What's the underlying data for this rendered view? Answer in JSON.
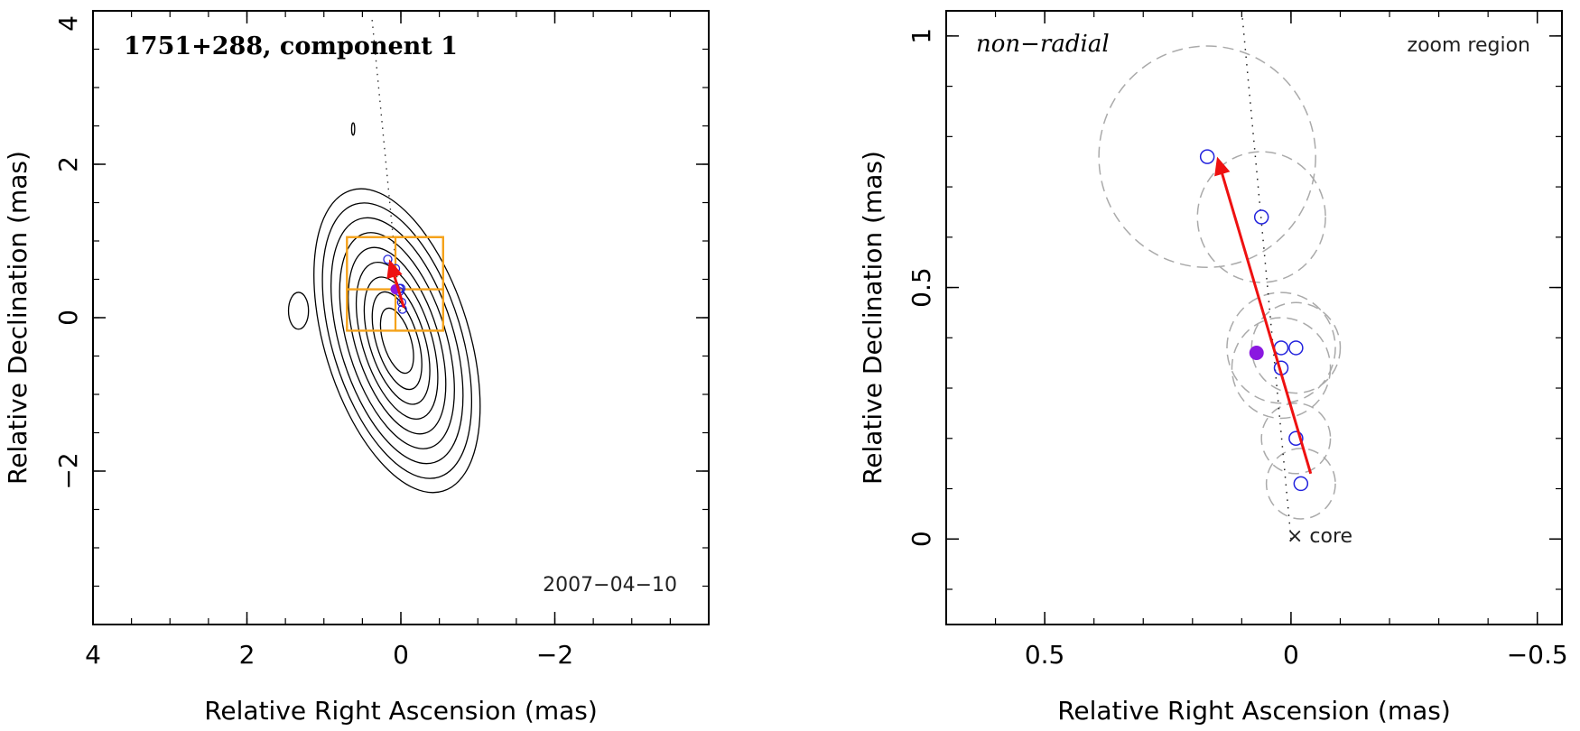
{
  "colors": {
    "contour": "#000000",
    "box": "#f5a21a",
    "circle": "#2222dd",
    "arrow": "#ee1111",
    "centroid": "#8a18e0",
    "error_circle": "#aaaaaa"
  },
  "chart_data": [
    {
      "id": "left",
      "type": "contour",
      "title": "1751+288, component 1",
      "date_label": "2007−04−10",
      "xlabel": "Relative Right Ascension (mas)",
      "ylabel": "Relative Declination (mas)",
      "xlim": [
        4,
        -4
      ],
      "ylim": [
        -4,
        4
      ],
      "xticks": [
        {
          "v": 4,
          "t": "4"
        },
        {
          "v": 2,
          "t": "2"
        },
        {
          "v": 0,
          "t": "0"
        },
        {
          "v": -2,
          "t": "−2"
        }
      ],
      "yticks": [
        {
          "v": 2,
          "t": "2"
        },
        {
          "v": 0,
          "t": "0"
        },
        {
          "v": -2,
          "t": "−2"
        }
      ],
      "ytop_label": {
        "v": 4,
        "t": "4"
      },
      "contours": {
        "center": [
          0.05,
          -0.3
        ],
        "pa_deg": -17,
        "levels": [
          {
            "a": 2.05,
            "b": 0.94
          },
          {
            "a": 1.86,
            "b": 0.84
          },
          {
            "a": 1.66,
            "b": 0.74
          },
          {
            "a": 1.46,
            "b": 0.64
          },
          {
            "a": 1.26,
            "b": 0.54
          },
          {
            "a": 1.06,
            "b": 0.45
          },
          {
            "a": 0.86,
            "b": 0.36
          },
          {
            "a": 0.66,
            "b": 0.27
          },
          {
            "a": 0.44,
            "b": 0.18
          }
        ],
        "islands": [
          {
            "x": 1.33,
            "y": 0.09,
            "a": 0.24,
            "b": 0.13
          },
          {
            "x": 0.62,
            "y": 2.46,
            "a": 0.08,
            "b": 0.02
          }
        ]
      },
      "boxes": [
        {
          "x0": 0.7,
          "x1": -0.55,
          "y0": -0.17,
          "y1": 1.05
        },
        {
          "x0": 0.7,
          "x1": -0.55,
          "y0": 0.37,
          "y1": 1.05
        },
        {
          "x0": 0.7,
          "x1": -0.55,
          "y0": -0.17,
          "y1": 0.37
        },
        {
          "x0": 0.07,
          "x1": -0.55,
          "y0": -0.17,
          "y1": 1.05
        }
      ],
      "trajectory_points": [
        {
          "x": 0.17,
          "y": 0.76
        },
        {
          "x": 0.07,
          "y": 0.64
        },
        {
          "x": 0.02,
          "y": 0.38
        },
        {
          "x": 0.0,
          "y": 0.38
        },
        {
          "x": 0.02,
          "y": 0.34
        },
        {
          "x": -0.01,
          "y": 0.2
        },
        {
          "x": -0.02,
          "y": 0.11
        }
      ],
      "centroid": {
        "x": 0.07,
        "y": 0.37
      },
      "arrow": {
        "from": [
          -0.04,
          0.13
        ],
        "to": [
          0.15,
          0.76
        ]
      },
      "ridge_line": [
        [
          0.0,
          0.0
        ],
        [
          0.38,
          3.95
        ]
      ]
    },
    {
      "id": "right",
      "type": "scatter",
      "title": "non−radial",
      "corner_label": "zoom region",
      "core_label": "× core",
      "xlabel": "Relative Right Ascension (mas)",
      "ylabel": "Relative Declination (mas)",
      "xlim": [
        0.7,
        -0.55
      ],
      "ylim": [
        -0.17,
        1.05
      ],
      "xticks": [
        {
          "v": 0.5,
          "t": "0.5"
        },
        {
          "v": 0,
          "t": "0"
        },
        {
          "v": -0.5,
          "t": "−0.5"
        }
      ],
      "yticks": [
        {
          "v": 1,
          "t": "1"
        },
        {
          "v": 0.5,
          "t": "0.5"
        },
        {
          "v": 0,
          "t": "0"
        }
      ],
      "points": [
        {
          "x": 0.17,
          "y": 0.76,
          "err": 0.22
        },
        {
          "x": 0.06,
          "y": 0.64,
          "err": 0.13
        },
        {
          "x": 0.02,
          "y": 0.38,
          "err": 0.11
        },
        {
          "x": -0.01,
          "y": 0.38,
          "err": 0.09
        },
        {
          "x": 0.02,
          "y": 0.34,
          "err": 0.1
        },
        {
          "x": -0.01,
          "y": 0.2,
          "err": 0.07
        },
        {
          "x": -0.02,
          "y": 0.11,
          "err": 0.07
        }
      ],
      "centroid": {
        "x": 0.07,
        "y": 0.37
      },
      "arrow": {
        "from": [
          -0.04,
          0.13
        ],
        "to": [
          0.15,
          0.76
        ]
      },
      "ridge_line": [
        [
          0.0,
          0.0
        ],
        [
          0.1,
          1.05
        ]
      ]
    }
  ]
}
